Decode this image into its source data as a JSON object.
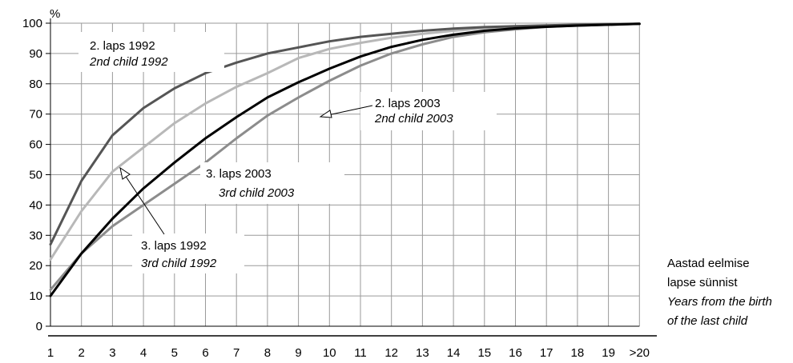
{
  "chart_data": {
    "type": "line",
    "y_unit_label": "%",
    "x_axis_label": {
      "et": [
        "Aastad eelmise",
        "lapse sünnist"
      ],
      "en": [
        "Years from the birth",
        "of the last child"
      ]
    },
    "categories": [
      "1",
      "2",
      "3",
      "4",
      "5",
      "6",
      "7",
      "8",
      "9",
      "10",
      "11",
      "12",
      "13",
      "14",
      "15",
      "16",
      "17",
      "18",
      "19",
      ">20"
    ],
    "ylim": [
      0,
      100
    ],
    "y_ticks": [
      0,
      10,
      20,
      30,
      40,
      50,
      60,
      70,
      80,
      90,
      100
    ],
    "grid": true,
    "series": [
      {
        "key": "second_1992",
        "label_et": "2. laps 1992",
        "label_en": "2nd child 1992",
        "color": "#555555",
        "values": [
          27,
          48,
          63,
          72,
          78.5,
          83.5,
          87,
          90,
          92,
          94,
          95.5,
          96.5,
          97.5,
          98.2,
          98.7,
          99,
          99.3,
          99.5,
          99.7,
          99.8
        ]
      },
      {
        "key": "third_1992",
        "label_et": "3. laps 1992",
        "label_en": "3rd child 1992",
        "color": "#b8b8b8",
        "values": [
          22,
          38,
          51,
          59,
          67,
          73.5,
          79,
          83.5,
          88.5,
          91.5,
          93.5,
          95.2,
          96.5,
          97.5,
          98.3,
          98.8,
          99.1,
          99.4,
          99.6,
          99.8
        ]
      },
      {
        "key": "second_2003",
        "label_et": "2. laps 2003",
        "label_en": "2nd child 2003",
        "color": "#000000",
        "values": [
          10,
          24,
          35.5,
          45.5,
          54,
          62,
          69,
          75.5,
          80.5,
          85,
          89,
          92.2,
          94.5,
          96.2,
          97.5,
          98.3,
          98.8,
          99.2,
          99.5,
          99.8
        ]
      },
      {
        "key": "third_2003",
        "label_et": "3. laps 2003",
        "label_en": "3rd child 2003",
        "color": "#8c8c8c",
        "values": [
          12,
          24,
          33,
          40,
          47,
          54,
          62,
          69.5,
          75.5,
          81,
          86,
          90,
          93,
          95.5,
          97,
          98,
          98.8,
          99.2,
          99.5,
          99.8
        ]
      }
    ]
  }
}
